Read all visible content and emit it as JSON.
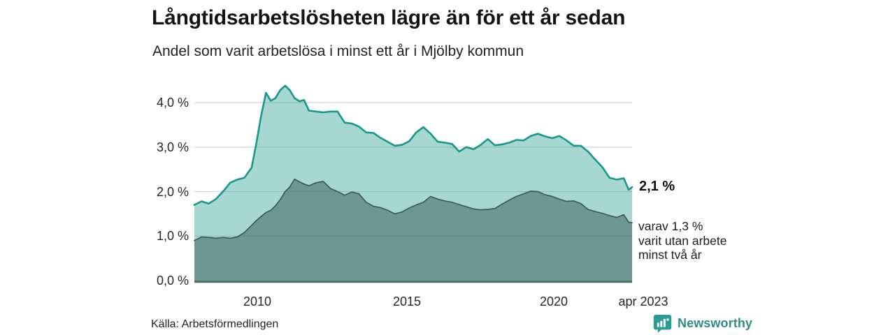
{
  "chart_data": {
    "type": "area",
    "title": "Långtidsarbetslösheten lägre än för ett år sedan",
    "subtitle": "Andel som varit arbetslösa i minst ett år i Mjölby kommun",
    "unit": "%",
    "x_range": [
      2008.0,
      2023.29
    ],
    "ylim": [
      0,
      4.5
    ],
    "grid": "horizontal",
    "legend": "none",
    "x": [
      2008.0,
      2008.25,
      2008.5,
      2008.75,
      2009.0,
      2009.25,
      2009.5,
      2009.75,
      2010.0,
      2010.17,
      2010.33,
      2010.5,
      2010.67,
      2010.83,
      2011.0,
      2011.17,
      2011.33,
      2011.5,
      2011.67,
      2011.83,
      2012.0,
      2012.25,
      2012.5,
      2012.75,
      2013.0,
      2013.25,
      2013.5,
      2013.75,
      2014.0,
      2014.25,
      2014.5,
      2014.75,
      2015.0,
      2015.25,
      2015.5,
      2015.75,
      2016.0,
      2016.25,
      2016.5,
      2016.75,
      2017.0,
      2017.25,
      2017.5,
      2017.75,
      2018.0,
      2018.25,
      2018.5,
      2018.75,
      2019.0,
      2019.25,
      2019.5,
      2019.75,
      2020.0,
      2020.25,
      2020.5,
      2020.75,
      2021.0,
      2021.25,
      2021.5,
      2021.75,
      2022.0,
      2022.25,
      2022.5,
      2022.75,
      2023.0,
      2023.17,
      2023.29
    ],
    "series": [
      {
        "name": "Arbetslösa minst ett år",
        "line_color": "#17988a",
        "fill_rgba": "rgba(23,150,135,0.38)",
        "fill_apparent": "#a7d7d1",
        "line_width": 2.6,
        "end_value": 2.1,
        "values": [
          1.7,
          1.78,
          1.73,
          1.83,
          2.0,
          2.2,
          2.27,
          2.31,
          2.54,
          3.1,
          3.7,
          4.22,
          4.04,
          4.1,
          4.28,
          4.38,
          4.28,
          4.1,
          4.03,
          4.06,
          3.82,
          3.8,
          3.78,
          3.8,
          3.8,
          3.55,
          3.53,
          3.46,
          3.33,
          3.32,
          3.21,
          3.12,
          3.03,
          3.05,
          3.13,
          3.33,
          3.45,
          3.3,
          3.12,
          3.1,
          3.07,
          2.9,
          3.0,
          2.95,
          3.05,
          3.18,
          3.04,
          3.06,
          3.1,
          3.16,
          3.15,
          3.25,
          3.3,
          3.24,
          3.2,
          3.25,
          3.15,
          3.03,
          3.03,
          2.9,
          2.72,
          2.55,
          2.31,
          2.27,
          2.3,
          2.04,
          2.1
        ]
      },
      {
        "name": "Varav utan arbete minst två år",
        "line_color": "#3d5a55",
        "fill_rgba": "rgba(42,77,72,0.46)",
        "fill_apparent": "#6d9792",
        "line_width": 1.7,
        "end_value": 1.3,
        "values": [
          0.9,
          0.98,
          0.97,
          0.95,
          0.97,
          0.95,
          0.98,
          1.08,
          1.24,
          1.35,
          1.44,
          1.53,
          1.58,
          1.68,
          1.82,
          2.0,
          2.1,
          2.28,
          2.22,
          2.17,
          2.13,
          2.2,
          2.23,
          2.07,
          2.0,
          1.92,
          1.99,
          1.95,
          1.76,
          1.67,
          1.64,
          1.58,
          1.5,
          1.54,
          1.63,
          1.7,
          1.76,
          1.89,
          1.83,
          1.79,
          1.76,
          1.71,
          1.66,
          1.61,
          1.59,
          1.6,
          1.62,
          1.72,
          1.81,
          1.89,
          1.95,
          2.01,
          2.0,
          1.93,
          1.89,
          1.83,
          1.78,
          1.79,
          1.73,
          1.6,
          1.55,
          1.51,
          1.46,
          1.42,
          1.48,
          1.31,
          1.3
        ]
      }
    ],
    "y_tick_values": [
      4,
      3,
      2,
      1,
      0
    ],
    "y_tick_labels": [
      "4,0 %",
      "3,0 %",
      "2,0 %",
      "1,0 %",
      "0,0 %"
    ],
    "x_tick_labels": [
      "2010",
      "2015",
      "2020",
      "apr 2023"
    ],
    "annotations": {
      "end_value": "2,1 %",
      "note_lines": [
        "varav 1,3 %",
        "varit utan arbete",
        "minst två år"
      ]
    }
  },
  "footer": {
    "source": "Källa: Arbetsförmedlingen",
    "brand": "Newsworthy"
  },
  "colors": {
    "gridline": "#d8d8d8",
    "axis_line": "#4e706b",
    "brand_teal": "#2f8d86",
    "logo_fill": "#2b9c92",
    "title_text": "#141414"
  }
}
